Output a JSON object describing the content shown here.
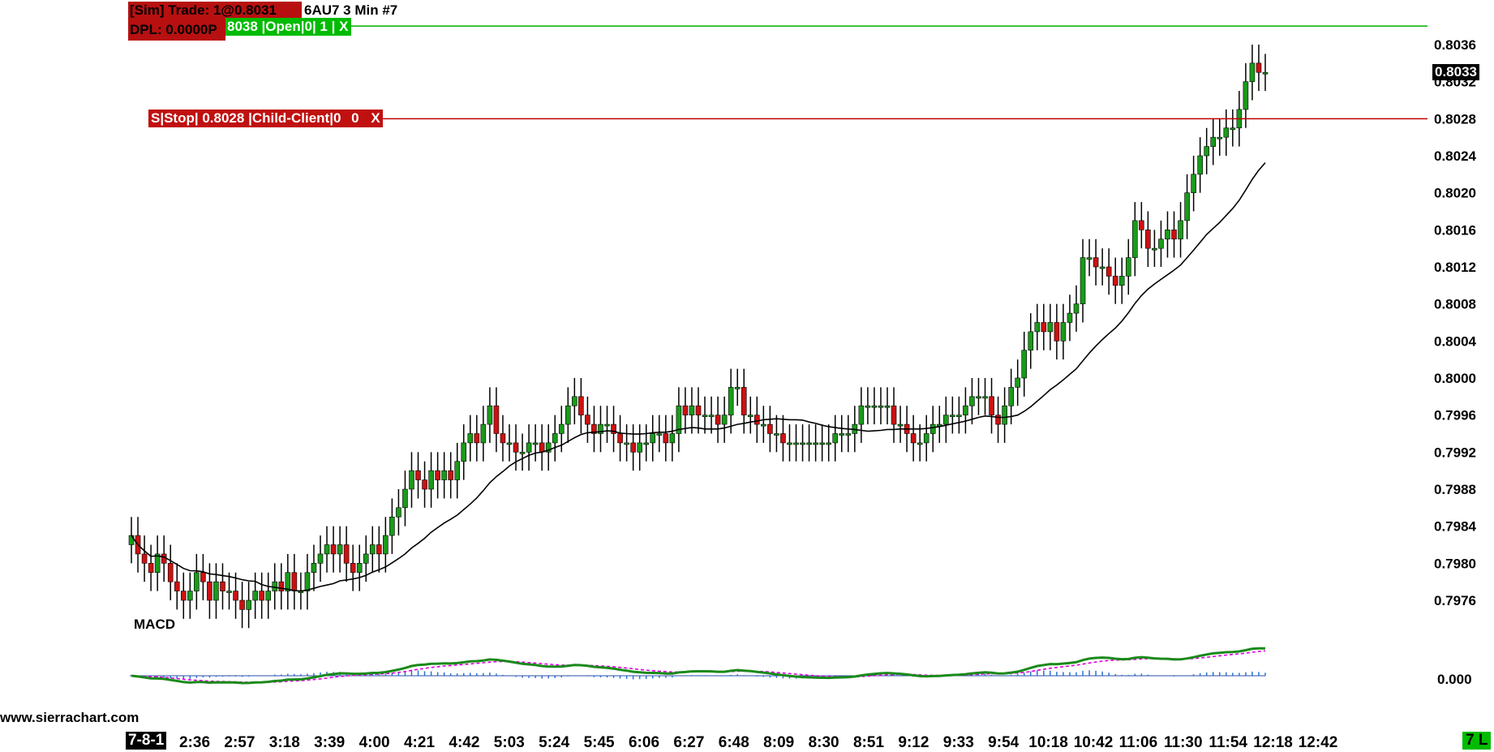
{
  "header": {
    "sim_trade": "[Sim]  Trade: 1@0.8031",
    "dpl": "DPL: 0.0000P",
    "symbol_info": "6AU7  3 Min   #7"
  },
  "orders": {
    "target_tag": "8038 |Open|0| 1 | X",
    "target_close": "X",
    "stop_label": "S|Stop| 0.8028 |Child-Client|0",
    "stop_qty": "0",
    "stop_close": "X"
  },
  "last_price": "0.8033",
  "macd": {
    "label": "MACD",
    "zero_label": "0.000"
  },
  "watermark": "www.sierrachart.com",
  "footer": {
    "date_label": "7-8-1",
    "status_badge": "7 L"
  },
  "colors": {
    "bull": "#1a9a1a",
    "bear": "#cc1111",
    "ma": "#000000",
    "target_line": "#00b000",
    "stop_line": "#c00000",
    "macd_line": "#1a8a1a",
    "signal_line": "#e000e0",
    "hist": "#2a6fd6"
  },
  "chart_data": {
    "type": "candlestick",
    "symbol": "6AU7",
    "interval": "3 Min",
    "y_ticks": [
      "0.8036",
      "0.8032",
      "0.8028",
      "0.8024",
      "0.8020",
      "0.8016",
      "0.8012",
      "0.8008",
      "0.8004",
      "0.8000",
      "0.7996",
      "0.7992",
      "0.7988",
      "0.7984",
      "0.7980",
      "0.7976"
    ],
    "ylim": [
      0.7971,
      0.8039
    ],
    "x_ticks": [
      "2:36",
      "2:57",
      "3:18",
      "3:39",
      "4:00",
      "4:21",
      "4:42",
      "5:03",
      "5:24",
      "5:45",
      "6:06",
      "6:27",
      "6:48",
      "8:09",
      "8:30",
      "8:51",
      "9:12",
      "9:33",
      "9:54",
      "10:18",
      "10:42",
      "11:06",
      "11:30",
      "11:54",
      "12:18",
      "12:42"
    ],
    "target_price": 0.8038,
    "stop_price": 0.8028,
    "closes": [
      0.7983,
      0.7981,
      0.798,
      0.7979,
      0.7981,
      0.798,
      0.7978,
      0.7977,
      0.7976,
      0.7977,
      0.7979,
      0.7978,
      0.7976,
      0.7978,
      0.7977,
      0.7977,
      0.7976,
      0.7975,
      0.7976,
      0.7977,
      0.7976,
      0.7977,
      0.7978,
      0.7977,
      0.7979,
      0.7977,
      0.7977,
      0.7979,
      0.798,
      0.7981,
      0.7982,
      0.7981,
      0.7982,
      0.798,
      0.7979,
      0.798,
      0.7981,
      0.7982,
      0.7981,
      0.7983,
      0.7985,
      0.7986,
      0.7988,
      0.799,
      0.7989,
      0.7988,
      0.799,
      0.7989,
      0.799,
      0.7989,
      0.7991,
      0.7993,
      0.7994,
      0.7993,
      0.7995,
      0.7997,
      0.7994,
      0.7993,
      0.7993,
      0.7992,
      0.7992,
      0.7993,
      0.7993,
      0.7992,
      0.7993,
      0.7994,
      0.7995,
      0.7997,
      0.7998,
      0.7996,
      0.7995,
      0.7994,
      0.7995,
      0.7995,
      0.7994,
      0.7993,
      0.7993,
      0.7992,
      0.7993,
      0.7993,
      0.7994,
      0.7994,
      0.7993,
      0.7994,
      0.7997,
      0.7996,
      0.7997,
      0.7996,
      0.7996,
      0.7996,
      0.7995,
      0.7996,
      0.7999,
      0.7999,
      0.7996,
      0.7996,
      0.7995,
      0.7995,
      0.7994,
      0.7994,
      0.7993,
      0.7993,
      0.7993,
      0.7993,
      0.7993,
      0.7993,
      0.7993,
      0.7993,
      0.7994,
      0.7994,
      0.7994,
      0.7995,
      0.7997,
      0.7997,
      0.7997,
      0.7997,
      0.7997,
      0.7995,
      0.7995,
      0.7994,
      0.7993,
      0.7993,
      0.7994,
      0.7995,
      0.7995,
      0.7996,
      0.7996,
      0.7996,
      0.7997,
      0.7998,
      0.7998,
      0.7998,
      0.7996,
      0.7995,
      0.7997,
      0.7999,
      0.8,
      0.8003,
      0.8005,
      0.8006,
      0.8005,
      0.8006,
      0.8004,
      0.8006,
      0.8007,
      0.8008,
      0.8013,
      0.8013,
      0.8012,
      0.8012,
      0.8011,
      0.801,
      0.8011,
      0.8013,
      0.8017,
      0.8016,
      0.8014,
      0.8014,
      0.8015,
      0.8016,
      0.8015,
      0.8017,
      0.802,
      0.8022,
      0.8024,
      0.8025,
      0.8026,
      0.8026,
      0.8027,
      0.8027,
      0.8029,
      0.8032,
      0.8034,
      0.8033,
      0.8033
    ],
    "macd": {
      "zero": 0.0,
      "series": [
        {
          "name": "MACD",
          "color": "#1a8a1a"
        },
        {
          "name": "Signal",
          "color": "#e000e0"
        },
        {
          "name": "Histogram",
          "color": "#2a6fd6"
        }
      ]
    }
  }
}
